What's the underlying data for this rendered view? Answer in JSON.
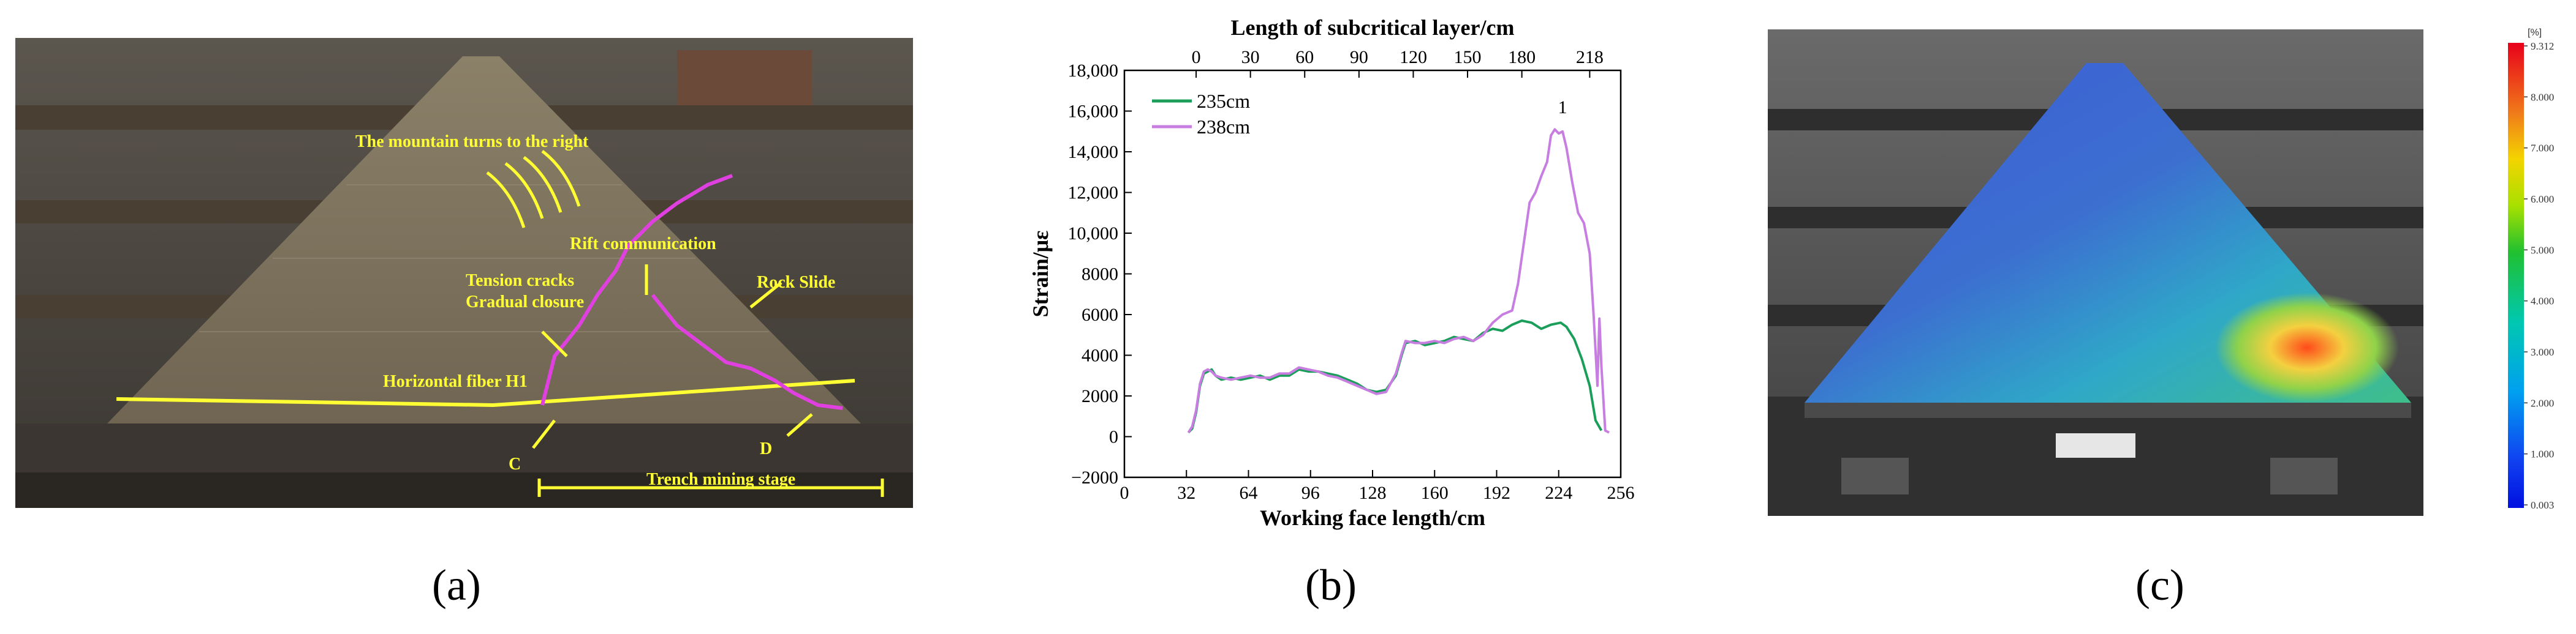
{
  "panels": {
    "a": {
      "label": "(a)",
      "annotations": {
        "mountain_turn": "The mountain turns to the right",
        "rift": "Rift communication",
        "tension1": "Tension cracks",
        "tension2": "Gradual closure",
        "rock_slide": "Rock Slide",
        "fiber": "Horizontal fiber H1",
        "c_marker": "C",
        "d_marker": "D",
        "trench": "Trench mining stage"
      }
    },
    "b": {
      "label": "(b)"
    },
    "c": {
      "label": "(c)",
      "colorbar": {
        "unit": "[%]",
        "ticks": [
          "9.312",
          "8.000",
          "7.000",
          "6.000",
          "5.000",
          "4.000",
          "3.000",
          "2.000",
          "1.000",
          "0.003"
        ]
      }
    }
  },
  "chart_data": {
    "type": "line",
    "xlabel": "Working face length/cm",
    "ylabel": "Strain/με",
    "top_xlabel": "Length of subcritical layer/cm",
    "xlim": [
      0,
      256
    ],
    "ylim": [
      -2000,
      18000
    ],
    "x_ticks": [
      0,
      32,
      64,
      96,
      128,
      160,
      192,
      224,
      256
    ],
    "y_ticks": [
      -2000,
      0,
      2000,
      4000,
      6000,
      8000,
      10000,
      12000,
      14000,
      16000,
      18000
    ],
    "y_tick_labels": [
      "−2000",
      "0",
      "2000",
      "4000",
      "6000",
      "8000",
      "10,000",
      "12,000",
      "14,000",
      "16,000",
      "18,000"
    ],
    "top_ticks": [
      {
        "label": "0",
        "x": 37
      },
      {
        "label": "30",
        "x": 65
      },
      {
        "label": "60",
        "x": 93
      },
      {
        "label": "90",
        "x": 121
      },
      {
        "label": "120",
        "x": 149
      },
      {
        "label": "150",
        "x": 177
      },
      {
        "label": "180",
        "x": 205
      },
      {
        "label": "218",
        "x": 240
      }
    ],
    "annotation": {
      "text": "1",
      "x": 226,
      "y": 15900
    },
    "series": [
      {
        "name": "235cm",
        "color": "#1a9e5a",
        "points": [
          [
            33,
            200
          ],
          [
            35,
            400
          ],
          [
            37,
            1200
          ],
          [
            39,
            2500
          ],
          [
            41,
            3100
          ],
          [
            43,
            3200
          ],
          [
            45,
            3300
          ],
          [
            47,
            3000
          ],
          [
            50,
            2800
          ],
          [
            55,
            2900
          ],
          [
            60,
            2800
          ],
          [
            65,
            2900
          ],
          [
            70,
            3000
          ],
          [
            75,
            2800
          ],
          [
            80,
            3000
          ],
          [
            85,
            3000
          ],
          [
            90,
            3300
          ],
          [
            95,
            3200
          ],
          [
            100,
            3200
          ],
          [
            105,
            3100
          ],
          [
            110,
            3000
          ],
          [
            115,
            2800
          ],
          [
            120,
            2600
          ],
          [
            125,
            2300
          ],
          [
            130,
            2200
          ],
          [
            135,
            2300
          ],
          [
            140,
            3000
          ],
          [
            143,
            4000
          ],
          [
            145,
            4600
          ],
          [
            150,
            4700
          ],
          [
            155,
            4500
          ],
          [
            160,
            4600
          ],
          [
            165,
            4700
          ],
          [
            170,
            4900
          ],
          [
            175,
            4800
          ],
          [
            180,
            4700
          ],
          [
            185,
            5100
          ],
          [
            190,
            5300
          ],
          [
            195,
            5200
          ],
          [
            200,
            5500
          ],
          [
            205,
            5700
          ],
          [
            210,
            5600
          ],
          [
            215,
            5300
          ],
          [
            220,
            5500
          ],
          [
            225,
            5600
          ],
          [
            228,
            5400
          ],
          [
            232,
            4800
          ],
          [
            236,
            3800
          ],
          [
            240,
            2500
          ],
          [
            243,
            800
          ],
          [
            246,
            300
          ]
        ]
      },
      {
        "name": "238cm",
        "color": "#c77ee0",
        "points": [
          [
            33,
            200
          ],
          [
            35,
            500
          ],
          [
            37,
            1300
          ],
          [
            39,
            2600
          ],
          [
            41,
            3200
          ],
          [
            43,
            3300
          ],
          [
            45,
            3200
          ],
          [
            47,
            3000
          ],
          [
            50,
            2900
          ],
          [
            55,
            2800
          ],
          [
            60,
            2900
          ],
          [
            65,
            3000
          ],
          [
            70,
            2900
          ],
          [
            75,
            2900
          ],
          [
            80,
            3100
          ],
          [
            85,
            3100
          ],
          [
            90,
            3400
          ],
          [
            95,
            3300
          ],
          [
            100,
            3200
          ],
          [
            105,
            3000
          ],
          [
            110,
            2900
          ],
          [
            115,
            2700
          ],
          [
            120,
            2500
          ],
          [
            125,
            2300
          ],
          [
            130,
            2100
          ],
          [
            135,
            2200
          ],
          [
            140,
            3100
          ],
          [
            143,
            4100
          ],
          [
            145,
            4700
          ],
          [
            150,
            4600
          ],
          [
            155,
            4600
          ],
          [
            160,
            4700
          ],
          [
            165,
            4600
          ],
          [
            170,
            4800
          ],
          [
            175,
            4900
          ],
          [
            180,
            4700
          ],
          [
            185,
            5000
          ],
          [
            190,
            5600
          ],
          [
            195,
            6000
          ],
          [
            200,
            6200
          ],
          [
            203,
            7500
          ],
          [
            206,
            9500
          ],
          [
            209,
            11500
          ],
          [
            212,
            12000
          ],
          [
            215,
            12800
          ],
          [
            218,
            13500
          ],
          [
            220,
            14800
          ],
          [
            222,
            15100
          ],
          [
            224,
            14900
          ],
          [
            226,
            15000
          ],
          [
            228,
            14200
          ],
          [
            231,
            12500
          ],
          [
            234,
            11000
          ],
          [
            237,
            10500
          ],
          [
            240,
            9000
          ],
          [
            242,
            6000
          ],
          [
            244,
            2500
          ],
          [
            245,
            5800
          ],
          [
            246,
            3500
          ],
          [
            248,
            300
          ],
          [
            250,
            200
          ]
        ]
      }
    ]
  }
}
